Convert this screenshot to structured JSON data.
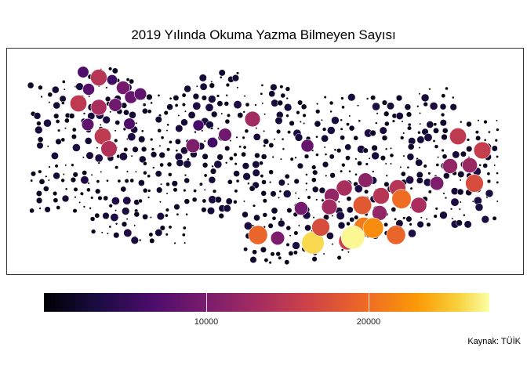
{
  "title": "2019 Yılında Okuma Yazma Bilmeyen Sayısı",
  "caption": "Kaynak: TÜİK",
  "legend": {
    "min": 0,
    "max": 27500,
    "ticks": [
      {
        "value": 10000,
        "label": "10000"
      },
      {
        "value": 20000,
        "label": "20000"
      }
    ],
    "colormap": "inferno"
  },
  "highlight_circles": [
    {
      "value": 6500
    },
    {
      "value": 13500
    },
    {
      "value": 5500
    },
    {
      "value": 7000
    },
    {
      "value": 14000
    },
    {
      "value": 9000
    },
    {
      "value": 8000
    },
    {
      "value": 7500
    },
    {
      "value": 12500
    },
    {
      "value": 8500
    },
    {
      "value": 7500
    },
    {
      "value": 14000
    },
    {
      "value": 6500
    },
    {
      "value": 13000
    },
    {
      "value": 6000
    },
    {
      "value": 5500
    },
    {
      "value": 9500
    },
    {
      "value": 8500
    },
    {
      "value": 12000
    },
    {
      "value": 8000
    },
    {
      "value": 10500
    },
    {
      "value": 12500
    },
    {
      "value": 11000
    },
    {
      "value": 13500
    },
    {
      "value": 9000
    },
    {
      "value": 12000
    },
    {
      "value": 17000
    },
    {
      "value": 13500
    },
    {
      "value": 18500
    },
    {
      "value": 11500
    },
    {
      "value": 14500
    },
    {
      "value": 16000
    },
    {
      "value": 18000
    },
    {
      "value": 9500
    },
    {
      "value": 25000
    },
    {
      "value": 15000
    },
    {
      "value": 19500
    },
    {
      "value": 11000
    },
    {
      "value": 27000
    },
    {
      "value": 16000
    },
    {
      "value": 20500
    },
    {
      "value": 18000
    },
    {
      "value": 12500
    },
    {
      "value": 9500
    },
    {
      "value": 11000
    },
    {
      "value": 14000
    }
  ]
}
